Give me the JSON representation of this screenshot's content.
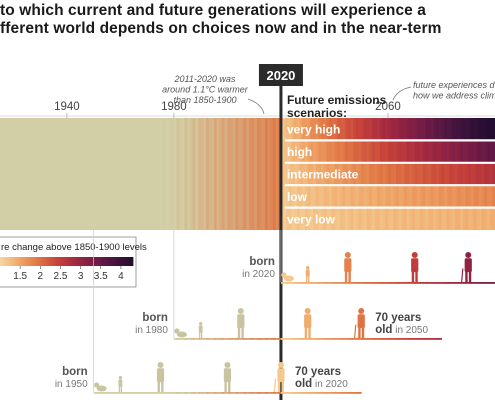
{
  "title_lines": [
    "to which current and future generations will experience a",
    "fferent world depends on choices now and in the near-term"
  ],
  "colors": {
    "pale": "#d2cfa6",
    "bar_line": "#2b2b2b",
    "text_dark": "#333333",
    "text_gray": "#777777",
    "scale": [
      "#f6d8a0",
      "#f0a86a",
      "#e07644",
      "#c8443a",
      "#a22840",
      "#741c46",
      "#451540",
      "#240d30"
    ]
  },
  "chart_data": {
    "type": "heatmap",
    "x_axis": {
      "range": [
        1915,
        2100
      ],
      "tick_labels": [
        "1940",
        "1980",
        "2060"
      ],
      "ticks": [
        1940,
        1980,
        2060
      ]
    },
    "year_marker": {
      "label": "2020",
      "year": 2020
    },
    "annotations": {
      "past_note": [
        "2011-2020 was",
        "around 1.1°C warmer",
        "than 1850-1900"
      ],
      "future_note": [
        "future experiences d",
        "how we address clim"
      ]
    },
    "scenarios_title": [
      "Future emissions",
      "scenarios:"
    ],
    "scenarios": [
      {
        "name": "very high",
        "warming_2100": 4.4
      },
      {
        "name": "high",
        "warming_2100": 3.6
      },
      {
        "name": "intermediate",
        "warming_2100": 2.7
      },
      {
        "name": "low",
        "warming_2100": 1.8
      },
      {
        "name": "very low",
        "warming_2100": 1.4
      }
    ],
    "legend": {
      "title": "re change above 1850-1900 levels",
      "range": [
        1,
        4.3
      ],
      "tick_labels": [
        "1.5",
        "2",
        "2.5",
        "3",
        "3.5",
        "4"
      ],
      "ticks": [
        1.5,
        2,
        2.5,
        3,
        3.5,
        4
      ]
    },
    "generations": [
      {
        "born_label": "born",
        "born_year_label": "in 2020",
        "birth_year": 2020,
        "age_label": "",
        "age_year_label": ""
      },
      {
        "born_label": "born",
        "born_year_label": "in 1980",
        "birth_year": 1980,
        "age_label": "70 years",
        "age_year_label": "old in 2050"
      },
      {
        "born_label": "born",
        "born_year_label": "in 1950",
        "birth_year": 1950,
        "age_label": "70 years",
        "age_year_label": "old in 2020"
      }
    ]
  }
}
